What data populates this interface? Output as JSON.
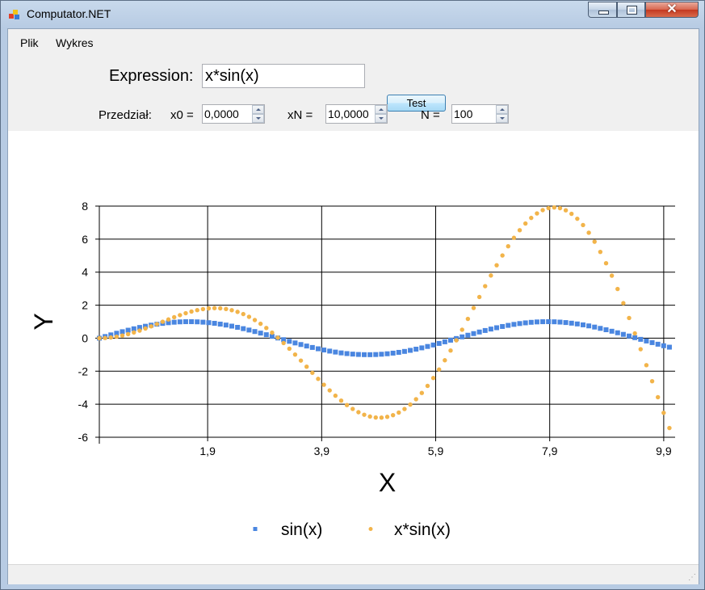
{
  "window": {
    "title": "Computator.NET",
    "close_glyph": "✕"
  },
  "menu": {
    "items": [
      "Plik",
      "Wykres"
    ]
  },
  "form": {
    "expression_label": "Expression:",
    "expression_value": "x*sin(x)",
    "test_button": "Test",
    "interval_label": "Przedział:",
    "x0_label": "x0 =",
    "x0_value": "0,0000",
    "xn_label": "xN =",
    "xn_value": "10,0000",
    "n_label": "N =",
    "n_value": "100"
  },
  "chart_data": {
    "type": "scatter",
    "xlabel": "X",
    "ylabel": "Y",
    "xlim": [
      0,
      10.1
    ],
    "ylim": [
      -6,
      8
    ],
    "xticks": [
      1.9,
      3.9,
      5.9,
      7.9,
      9.9
    ],
    "xtick_labels": [
      "1,9",
      "3,9",
      "5,9",
      "7,9",
      "9,9"
    ],
    "yticks": [
      -6,
      -4,
      -2,
      0,
      2,
      4,
      6,
      8
    ],
    "ytick_labels": [
      "-6",
      "-4",
      "-2",
      "0",
      "2",
      "4",
      "6",
      "8"
    ],
    "grid": true,
    "legend_position": "bottom",
    "x_range": [
      0,
      10
    ],
    "n_points": 100,
    "series": [
      {
        "name": "sin(x)",
        "function": "sin",
        "marker": "square",
        "color": "#4a86e0"
      },
      {
        "name": "x*sin(x)",
        "function": "xsin",
        "marker": "circle",
        "color": "#f2b44a"
      }
    ]
  }
}
